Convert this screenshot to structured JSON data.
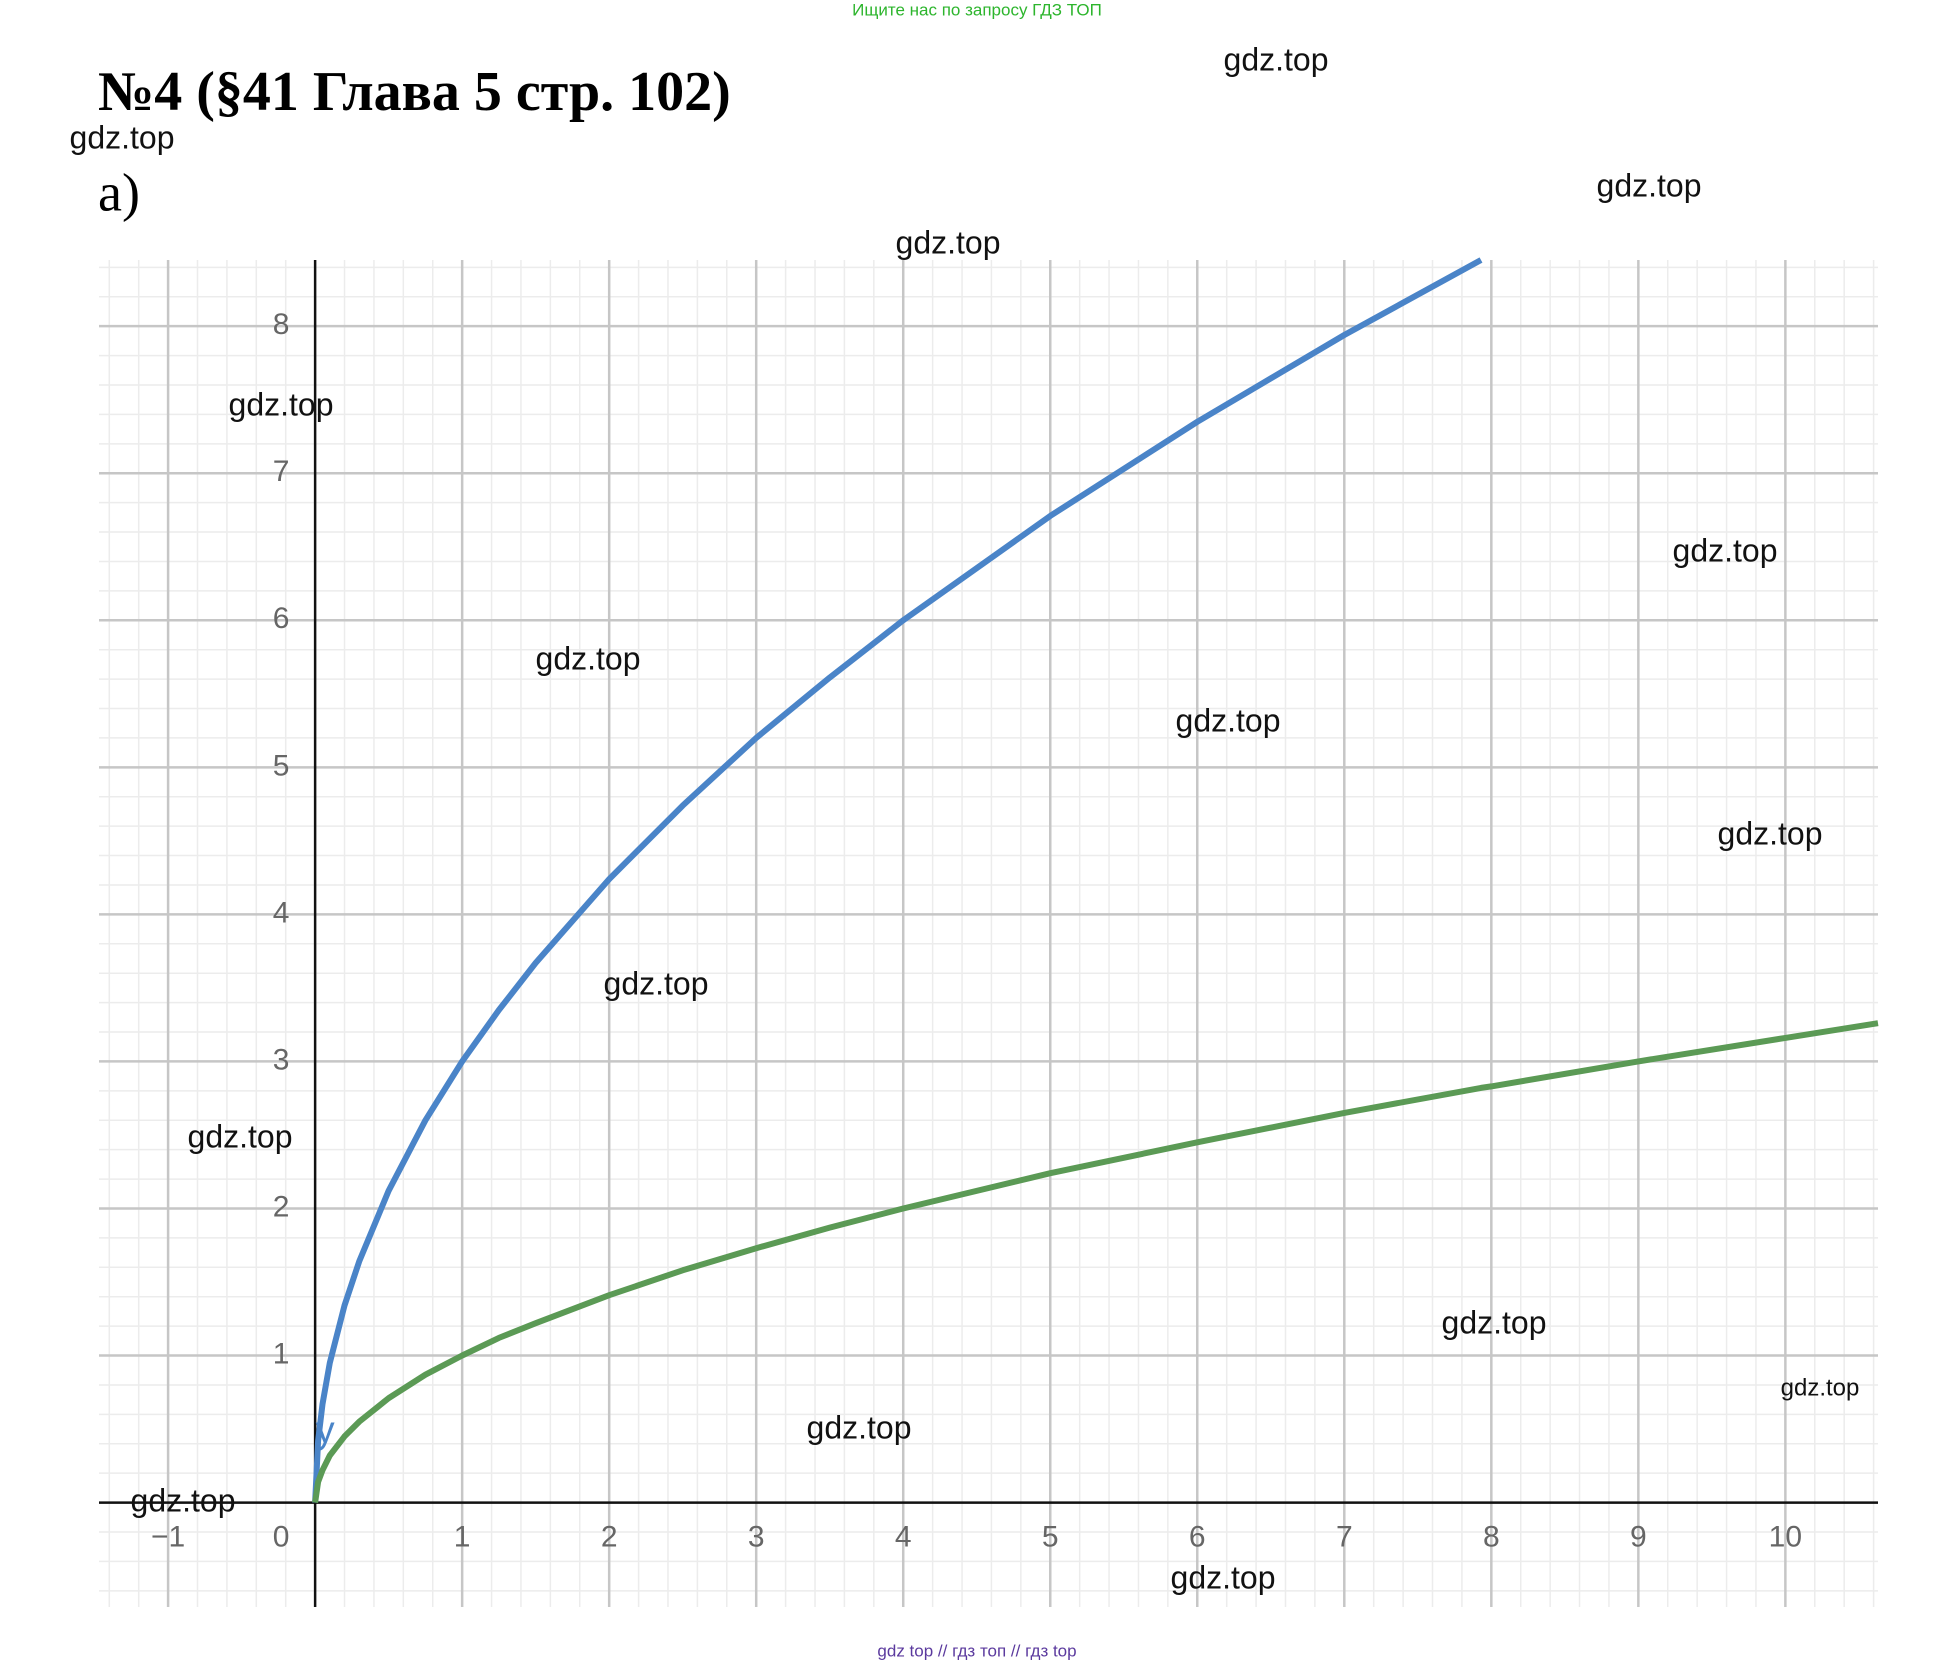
{
  "header": "Ищите нас по запросу ГДЗ ТОП",
  "title": "№4 (§41 Глава 5  стр. 102)",
  "subtitle": "а)",
  "watermarks": [
    "gdz.top",
    "gdz.top",
    "gdz.top",
    "gdz.top",
    "gdz.top",
    "gdz.top",
    "gdz.top",
    "gdz.top",
    "gdz.top",
    "gdz.top",
    "gdz.top",
    "gdz.top",
    "gdz.top",
    "gdz.top",
    "gdz.top",
    "gdz.top"
  ],
  "footer": "gdz top // гдз топ // гдз top",
  "chart_data": {
    "type": "line",
    "axis_label": "y",
    "x": [
      0,
      0.02,
      0.05,
      0.1,
      0.2,
      0.3,
      0.5,
      0.75,
      1,
      1.25,
      1.5,
      2,
      2.5,
      3,
      3.5,
      4,
      5,
      6,
      7,
      7.93,
      8,
      9,
      10,
      10.63
    ],
    "series": [
      {
        "color": "#4a84c8",
        "values": [
          0,
          0.42,
          0.67,
          0.95,
          1.34,
          1.64,
          2.12,
          2.6,
          3,
          3.35,
          3.67,
          4.24,
          4.74,
          5.2,
          5.61,
          6,
          6.71,
          7.35,
          7.94,
          8.45,
          null,
          null,
          null,
          null
        ]
      },
      {
        "color": "#5b9a55",
        "values": [
          0,
          0.14,
          0.22,
          0.32,
          0.45,
          0.55,
          0.71,
          0.87,
          1,
          1.12,
          1.22,
          1.41,
          1.58,
          1.73,
          1.87,
          2,
          2.24,
          2.45,
          2.65,
          2.82,
          2.83,
          3,
          3.16,
          3.26
        ]
      }
    ],
    "xlim": [
      -1.47,
      10.63
    ],
    "ylim": [
      -0.71,
      8.45
    ],
    "xticks": [
      {
        "value": -1,
        "label": "−1"
      },
      0,
      1,
      2,
      3,
      4,
      5,
      6,
      7,
      8,
      9,
      10
    ],
    "yticks": [
      1,
      2,
      3,
      4,
      5,
      6,
      7,
      8
    ],
    "grid": true
  }
}
